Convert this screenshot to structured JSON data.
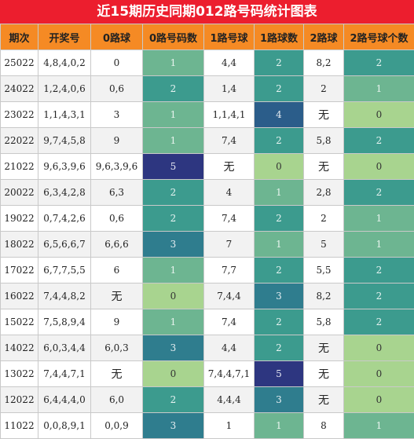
{
  "title": "近15期历史同期012路号码统计图表",
  "columns": [
    "期次",
    "开奖号",
    "0路球",
    "0路号码数",
    "1路号球",
    "1路球数",
    "2路球",
    "2路号球个数"
  ],
  "rows": [
    {
      "period": "25022",
      "draw": "4,8,4,0,2",
      "r0": "0",
      "c0": "1",
      "r1": "4,4",
      "c1": "2",
      "r2": "8,2",
      "c2": "2"
    },
    {
      "period": "24022",
      "draw": "1,2,4,0,6",
      "r0": "0,6",
      "c0": "2",
      "r1": "1,4",
      "c1": "2",
      "r2": "2",
      "c2": "1"
    },
    {
      "period": "23022",
      "draw": "1,1,4,3,1",
      "r0": "3",
      "c0": "1",
      "r1": "1,1,4,1",
      "c1": "4",
      "r2": "无",
      "c2": "0"
    },
    {
      "period": "22022",
      "draw": "9,7,4,5,8",
      "r0": "9",
      "c0": "1",
      "r1": "7,4",
      "c1": "2",
      "r2": "5,8",
      "c2": "2"
    },
    {
      "period": "21022",
      "draw": "9,6,3,9,6",
      "r0": "9,6,3,9,6",
      "c0": "5",
      "r1": "无",
      "c1": "0",
      "r2": "无",
      "c2": "0"
    },
    {
      "period": "20022",
      "draw": "6,3,4,2,8",
      "r0": "6,3",
      "c0": "2",
      "r1": "4",
      "c1": "1",
      "r2": "2,8",
      "c2": "2"
    },
    {
      "period": "19022",
      "draw": "0,7,4,2,6",
      "r0": "0,6",
      "c0": "2",
      "r1": "7,4",
      "c1": "2",
      "r2": "2",
      "c2": "1"
    },
    {
      "period": "18022",
      "draw": "6,5,6,6,7",
      "r0": "6,6,6",
      "c0": "3",
      "r1": "7",
      "c1": "1",
      "r2": "5",
      "c2": "1"
    },
    {
      "period": "17022",
      "draw": "6,7,7,5,5",
      "r0": "6",
      "c0": "1",
      "r1": "7,7",
      "c1": "2",
      "r2": "5,5",
      "c2": "2"
    },
    {
      "period": "16022",
      "draw": "7,4,4,8,2",
      "r0": "无",
      "c0": "0",
      "r1": "7,4,4",
      "c1": "3",
      "r2": "8,2",
      "c2": "2"
    },
    {
      "period": "15022",
      "draw": "7,5,8,9,4",
      "r0": "9",
      "c0": "1",
      "r1": "7,4",
      "c1": "2",
      "r2": "5,8",
      "c2": "2"
    },
    {
      "period": "14022",
      "draw": "6,0,3,4,4",
      "r0": "6,0,3",
      "c0": "3",
      "r1": "4,4",
      "c1": "2",
      "r2": "无",
      "c2": "0"
    },
    {
      "period": "13022",
      "draw": "7,4,4,7,1",
      "r0": "无",
      "c0": "0",
      "r1": "7,4,4,7,1",
      "c1": "5",
      "r2": "无",
      "c2": "0"
    },
    {
      "period": "12022",
      "draw": "6,4,4,4,0",
      "r0": "6,0",
      "c0": "2",
      "r1": "4,4,4",
      "c1": "3",
      "r2": "无",
      "c2": "0"
    },
    {
      "period": "11022",
      "draw": "0,0,8,9,1",
      "r0": "0,0,9",
      "c0": "3",
      "r1": "1",
      "c1": "1",
      "r2": "8",
      "c2": "1"
    }
  ]
}
